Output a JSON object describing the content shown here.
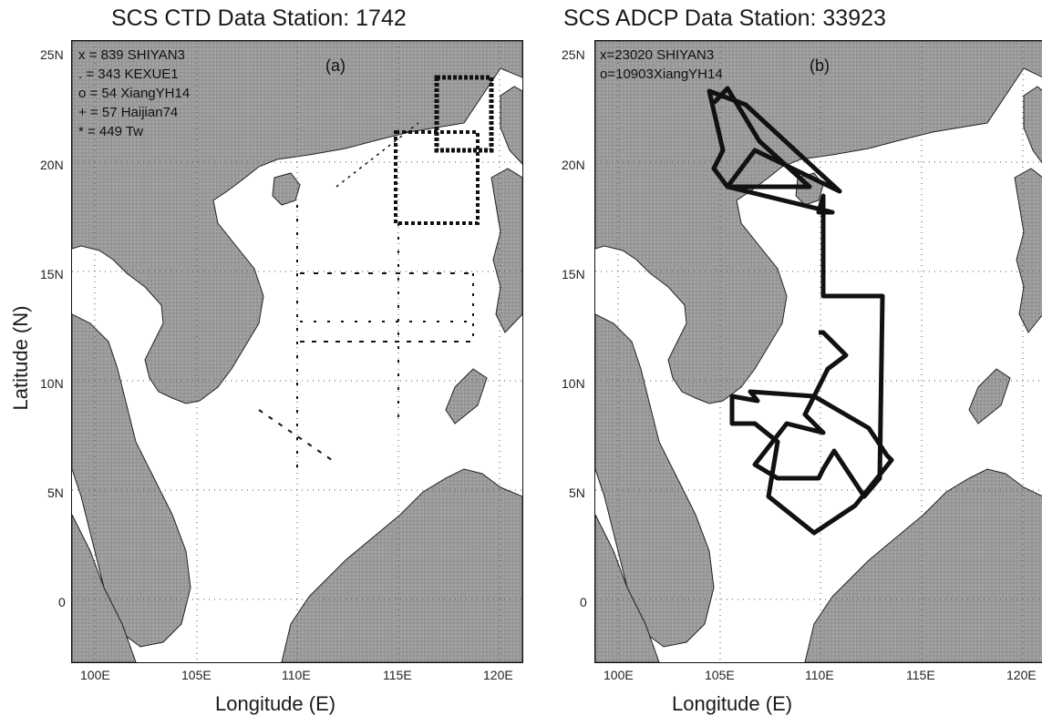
{
  "panel_a": {
    "title": "SCS CTD Data Station: 1742",
    "letter": "(a)",
    "legend": [
      "x = 839 SHIYAN3",
      ". = 343 KEXUE1",
      "o = 54 XiangYH14",
      "+ = 57 Haijian74",
      "* = 449 Tw"
    ],
    "xlabel": "Longitude (E)",
    "ylabel": "Latitude (N)"
  },
  "panel_b": {
    "title": "SCS ADCP Data Station: 33923",
    "letter": "(b)",
    "legend": [
      "x=23020 SHIYAN3",
      "o=10903XiangYH14"
    ],
    "xlabel": "Longitude (E)"
  },
  "axes": {
    "lon_ticks": [
      "100E",
      "105E",
      "110E",
      "115E",
      "120E"
    ],
    "lat_ticks": [
      "25N",
      "20N",
      "15N",
      "10N",
      "5N",
      "0"
    ],
    "lon_range": [
      99,
      121
    ],
    "lat_range": [
      -3,
      25.5
    ]
  },
  "colors": {
    "land": "#9a9a9a",
    "sea": "#ffffff",
    "track": "#111111",
    "grid": "#555555"
  }
}
